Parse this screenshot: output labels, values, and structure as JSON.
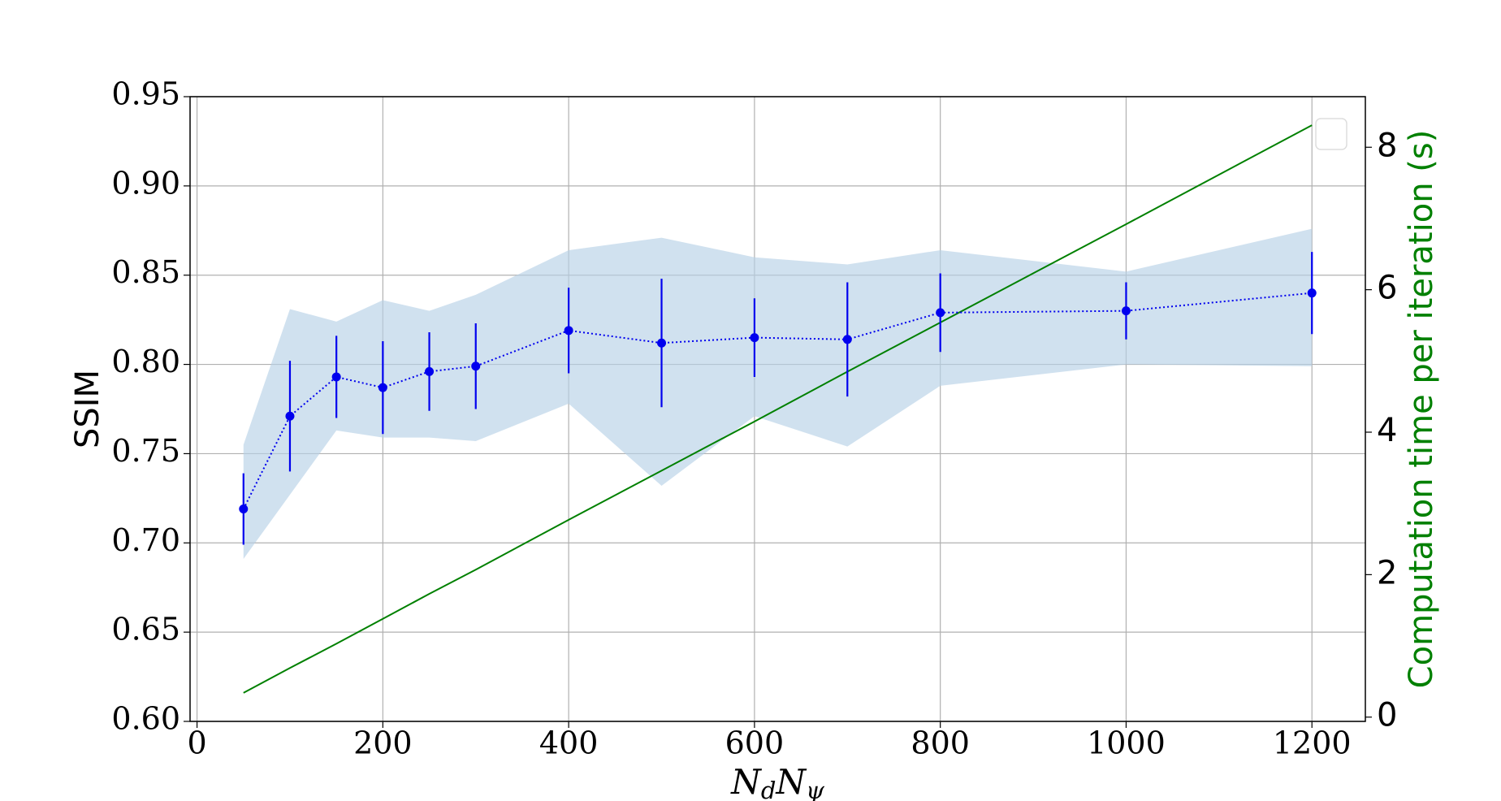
{
  "chart_data": {
    "type": "errorbar_band_dual",
    "xlabel": [
      "N",
      "d",
      "N",
      "ψ"
    ],
    "ylabel": "SSIM",
    "y2label": "Computation time per iteration (s)",
    "x": [
      50,
      100,
      150,
      200,
      250,
      300,
      400,
      500,
      600,
      700,
      800,
      1000,
      1200
    ],
    "xlim": [
      -7.5,
      1257.5
    ],
    "xticks": [
      0,
      200,
      400,
      600,
      800,
      1000,
      1200
    ],
    "ylim": [
      0.6,
      0.95
    ],
    "yticks": [
      {
        "value": 0.6,
        "label": "0.60"
      },
      {
        "value": 0.65,
        "label": "0.65"
      },
      {
        "value": 0.7,
        "label": "0.70"
      },
      {
        "value": 0.75,
        "label": "0.75"
      },
      {
        "value": 0.8,
        "label": "0.80"
      },
      {
        "value": 0.85,
        "label": "0.85"
      },
      {
        "value": 0.9,
        "label": "0.90"
      },
      {
        "value": 0.95,
        "label": "0.95"
      }
    ],
    "y2lim": [
      -0.06,
      8.71
    ],
    "y2ticks": [
      0,
      2,
      4,
      6,
      8
    ],
    "grid": true,
    "ssim": {
      "color": "#0000ee",
      "values": [
        0.719,
        0.771,
        0.793,
        0.787,
        0.796,
        0.799,
        0.819,
        0.812,
        0.815,
        0.814,
        0.829,
        0.83,
        0.84
      ],
      "errors": [
        0.02,
        0.031,
        0.023,
        0.026,
        0.022,
        0.024,
        0.024,
        0.036,
        0.022,
        0.032,
        0.022,
        0.016,
        0.023
      ]
    },
    "band": {
      "color": "#b7d1e6",
      "upper": [
        0.755,
        0.831,
        0.824,
        0.836,
        0.83,
        0.839,
        0.864,
        0.871,
        0.86,
        0.856,
        0.864,
        0.852,
        0.876
      ],
      "lower": [
        0.691,
        0.727,
        0.763,
        0.759,
        0.759,
        0.757,
        0.778,
        0.732,
        0.771,
        0.754,
        0.788,
        0.8,
        0.799
      ]
    },
    "time": {
      "color": "#008000",
      "axis": "y2",
      "values": [
        0.34,
        0.69,
        1.03,
        1.38,
        1.73,
        2.07,
        2.77,
        3.46,
        4.15,
        4.85,
        5.54,
        6.92,
        8.31
      ]
    }
  }
}
